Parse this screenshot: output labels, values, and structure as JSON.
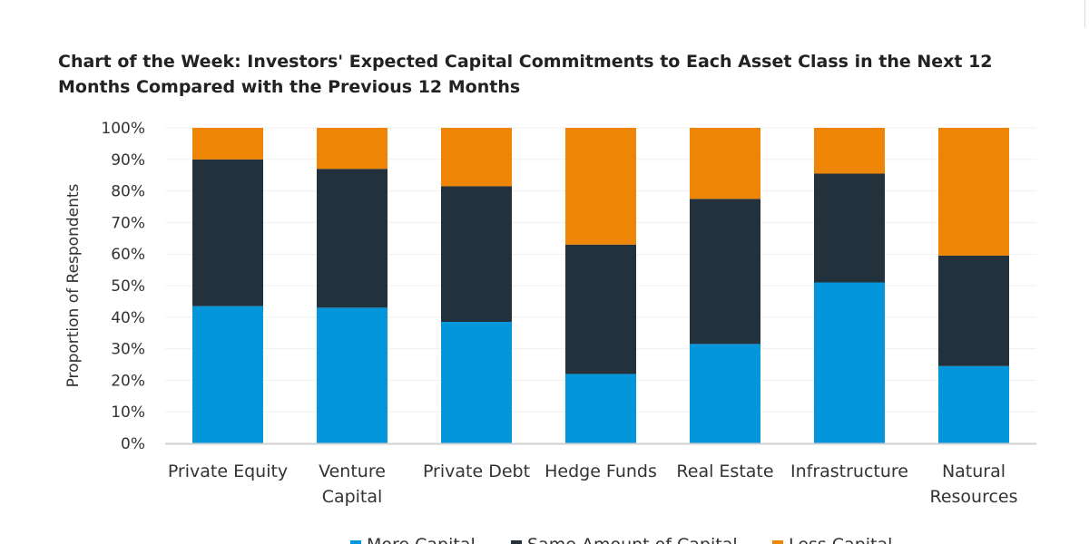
{
  "chart_data": {
    "type": "bar",
    "stacked": true,
    "title": "Chart of the Week: Investors' Expected Capital Commitments to Each Asset Class in the Next 12 Months Compared with the Previous 12 Months",
    "xlabel": "",
    "ylabel": "Proportion of Respondents",
    "ylim": [
      0,
      100
    ],
    "y_ticks": [
      "0%",
      "10%",
      "20%",
      "30%",
      "40%",
      "50%",
      "60%",
      "70%",
      "80%",
      "90%",
      "100%"
    ],
    "grid": true,
    "legend_position": "bottom",
    "categories": [
      [
        "Private Equity"
      ],
      [
        "Venture",
        "Capital"
      ],
      [
        "Private Debt"
      ],
      [
        "Hedge Funds"
      ],
      [
        "Real Estate"
      ],
      [
        "Infrastructure"
      ],
      [
        "Natural",
        "Resources"
      ]
    ],
    "series": [
      {
        "name": "More Capital",
        "color": "#0496db",
        "values": [
          43.5,
          43,
          38.5,
          22,
          31.5,
          51,
          24.5
        ]
      },
      {
        "name": "Same Amount of Capital",
        "color": "#23313c",
        "values": [
          46.5,
          44,
          43,
          41,
          46,
          34.5,
          35
        ]
      },
      {
        "name": "Less Capital",
        "color": "#ef8505",
        "values": [
          10,
          13,
          18.5,
          37,
          22.5,
          14.5,
          40.5
        ]
      }
    ]
  }
}
